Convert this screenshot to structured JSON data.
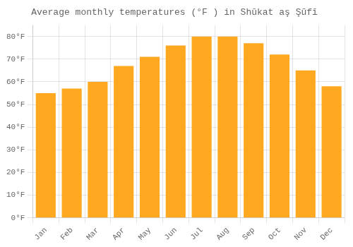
{
  "chart_data": {
    "type": "bar",
    "title": "Average monthly temperatures (°F ) in Shūkat aş Şūfī",
    "categories": [
      "Jan",
      "Feb",
      "Mar",
      "Apr",
      "May",
      "Jun",
      "Jul",
      "Aug",
      "Sep",
      "Oct",
      "Nov",
      "Dec"
    ],
    "values": [
      55,
      57,
      60,
      67,
      71,
      76,
      80,
      80,
      77,
      72,
      65,
      58
    ],
    "color": "#FFA820",
    "ylim": [
      0,
      85
    ],
    "yticks": [
      {
        "value": 0,
        "label": "0°F"
      },
      {
        "value": 10,
        "label": "10°F"
      },
      {
        "value": 20,
        "label": "20°F"
      },
      {
        "value": 30,
        "label": "30°F"
      },
      {
        "value": 40,
        "label": "40°F"
      },
      {
        "value": 50,
        "label": "50°F"
      },
      {
        "value": 60,
        "label": "60°F"
      },
      {
        "value": 70,
        "label": "70°F"
      },
      {
        "value": 80,
        "label": "80°F"
      }
    ],
    "grid": true
  }
}
